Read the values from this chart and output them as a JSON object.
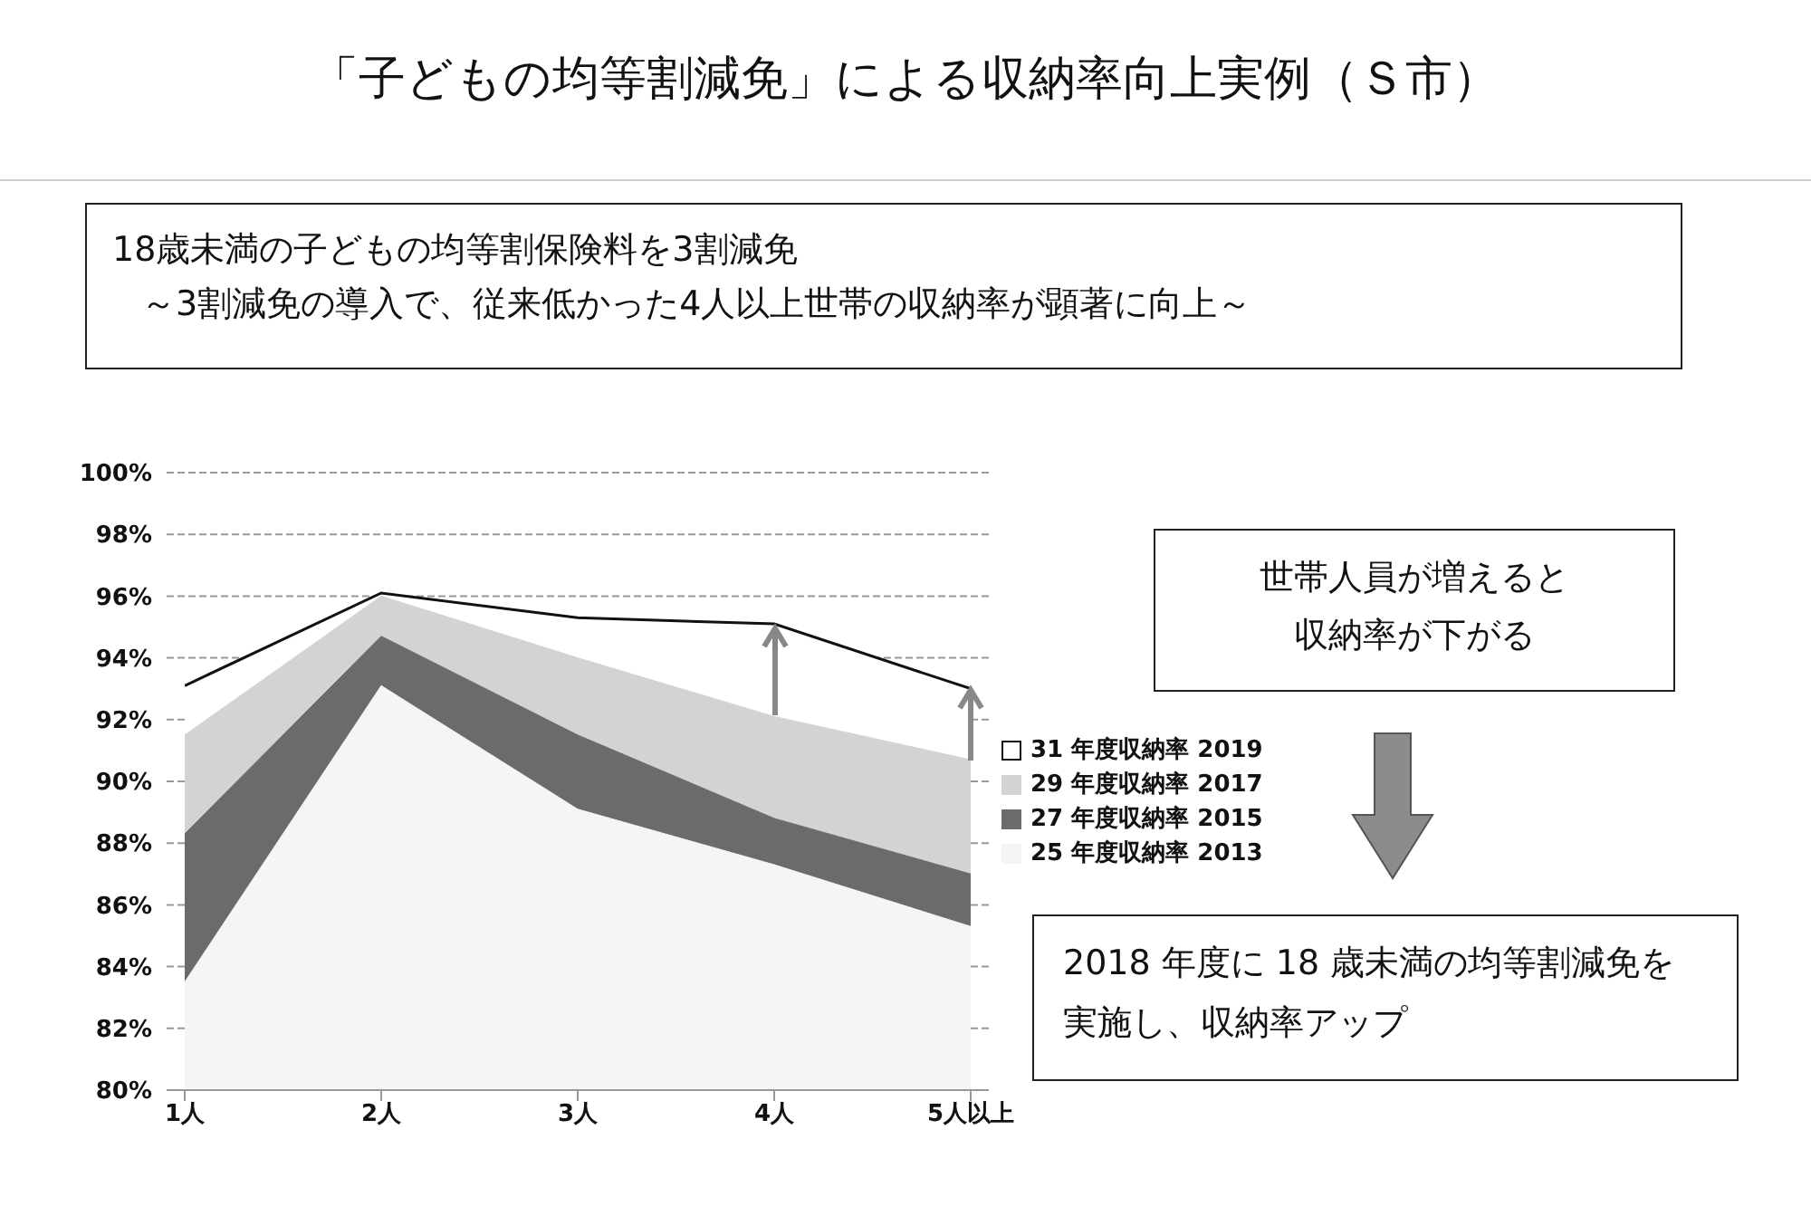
{
  "chart_data": {
    "type": "area",
    "title": "「子どもの均等割減免」による収納率向上実例（Ｓ市）",
    "categories": [
      "1人",
      "2人",
      "3人",
      "4人",
      "5人以上"
    ],
    "series": [
      {
        "name": "31 年度収納率 2019",
        "color": "#ffffff",
        "values": [
          93.1,
          96.1,
          95.3,
          95.1,
          93.0
        ]
      },
      {
        "name": "29 年度収納率 2017",
        "color": "#d3d3d3",
        "values": [
          91.5,
          96.0,
          94.0,
          92.1,
          90.7
        ]
      },
      {
        "name": "27 年度収納率 2015",
        "color": "#6b6b6b",
        "values": [
          88.3,
          94.7,
          91.5,
          88.8,
          87.0
        ]
      },
      {
        "name": "25 年度収納率 2013",
        "color": "#f5f5f5",
        "values": [
          83.5,
          93.1,
          89.1,
          87.3,
          85.3
        ]
      }
    ],
    "ylim": [
      80,
      100
    ],
    "yticks": [
      {
        "value": 80,
        "label": "80%"
      },
      {
        "value": 82,
        "label": "82%"
      },
      {
        "value": 84,
        "label": "84%"
      },
      {
        "value": 86,
        "label": "86%"
      },
      {
        "value": 88,
        "label": "88%"
      },
      {
        "value": 90,
        "label": "90%"
      },
      {
        "value": 92,
        "label": "92%"
      },
      {
        "value": 94,
        "label": "94%"
      },
      {
        "value": 96,
        "label": "96%"
      },
      {
        "value": 98,
        "label": "98%"
      },
      {
        "value": 100,
        "label": "100%"
      }
    ],
    "grid": "y",
    "legend": "right",
    "annotations": [
      "18歳未満の子どもの均等割保険料を3割減免",
      "～3割減免の導入で、従来低かった4人以上世帯の収納率が顕著に向上～",
      "世帯人員が増えると収納率が下がる",
      "2018 年度に 18 歳未満の均等割減免を実施し、収納率アップ"
    ]
  }
}
